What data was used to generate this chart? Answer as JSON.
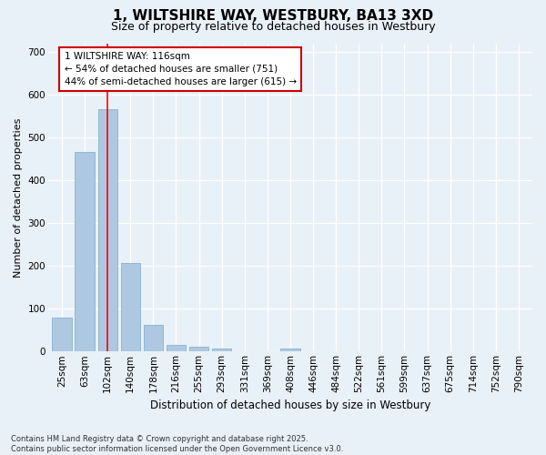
{
  "title_line1": "1, WILTSHIRE WAY, WESTBURY, BA13 3XD",
  "title_line2": "Size of property relative to detached houses in Westbury",
  "xlabel": "Distribution of detached houses by size in Westbury",
  "ylabel": "Number of detached properties",
  "categories": [
    "25sqm",
    "63sqm",
    "102sqm",
    "140sqm",
    "178sqm",
    "216sqm",
    "255sqm",
    "293sqm",
    "331sqm",
    "369sqm",
    "408sqm",
    "446sqm",
    "484sqm",
    "522sqm",
    "561sqm",
    "599sqm",
    "637sqm",
    "675sqm",
    "714sqm",
    "752sqm",
    "790sqm"
  ],
  "values": [
    80,
    465,
    565,
    207,
    62,
    16,
    11,
    7,
    0,
    0,
    7,
    0,
    0,
    0,
    0,
    0,
    0,
    0,
    0,
    0,
    0
  ],
  "bar_color": "#adc8e0",
  "bar_edge_color": "#7aaac8",
  "red_line_x": 2,
  "annotation_text": "1 WILTSHIRE WAY: 116sqm\n← 54% of detached houses are smaller (751)\n44% of semi-detached houses are larger (615) →",
  "annotation_box_color": "#ffffff",
  "annotation_box_edge_color": "#cc0000",
  "bg_color": "#e8f0f8",
  "plot_bg_color": "#e8f0f8",
  "grid_color": "#ffffff",
  "footer_line1": "Contains HM Land Registry data © Crown copyright and database right 2025.",
  "footer_line2": "Contains public sector information licensed under the Open Government Licence v3.0.",
  "ylim": [
    0,
    720
  ],
  "yticks": [
    0,
    100,
    200,
    300,
    400,
    500,
    600,
    700
  ],
  "title_fontsize": 11,
  "subtitle_fontsize": 9,
  "xlabel_fontsize": 8.5,
  "ylabel_fontsize": 8,
  "tick_fontsize": 7.5,
  "annot_fontsize": 7.5,
  "footer_fontsize": 6
}
